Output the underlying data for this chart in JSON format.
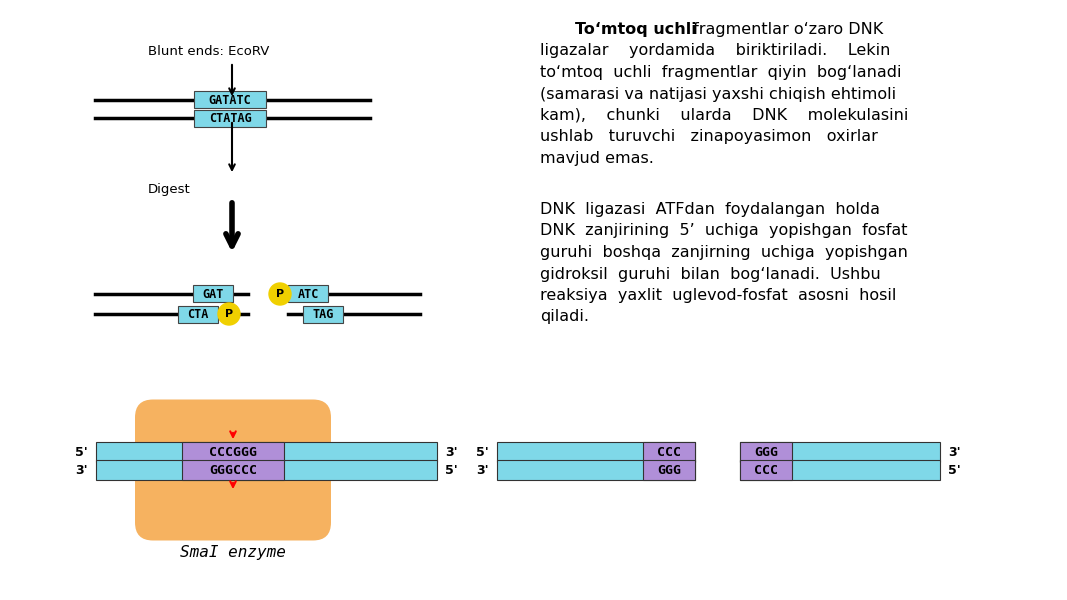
{
  "bg_color": "#ffffff",
  "para1_bold": "To‘mtoq uchli",
  "para1_lines": [
    " fragmentlar o‘zaro DNK",
    "ligazalar    yordamida    biriktiriladi.    Lekin",
    "to‘mtoq  uchli  fragmentlar  qiyin  bog‘lanadi",
    "(samarasi va natijasi yaxshi chiqish ehtimoli",
    "kam),    chunki    ularda    DNK    molekulasini",
    "ushlab   turuvchi   zinapoyasimon   oxirlar",
    "mavjud emas."
  ],
  "para2_lines": [
    "DNK  ligazasi  ATFdan  foydalangan  holda",
    "DNK  zanjirining  5’  uchiga  yopishgan  fosfat",
    "guruhi  boshqa  zanjirning  uchiga  yopishgan",
    "gidroksil  guruhi  bilan  bog‘lanadi.  Ushbu",
    "reaksiya  yaxlit  uglevod-fosfat  asosni  hosil",
    "qiladi."
  ],
  "blunt_label": "Blunt ends: EcoRV",
  "digest_label": "Digest",
  "top_seq1": "GATATC",
  "top_seq2": "CTATAG",
  "left_seq1": "GAT",
  "left_seq2": "CTA",
  "right_seq1": "ATC",
  "right_seq2": "TAG",
  "cyan_color": "#7fd8e8",
  "purple_color": "#b08fd8",
  "orange_color": "#f5a84a",
  "yellow_color": "#f0d000",
  "smai_label": "SmaI enzyme",
  "bottom_seq_top": "CCCGGG",
  "bottom_seq_bot": "GGGCCC",
  "frag_left_ccc": "CCC",
  "frag_left_ggg": "GGG",
  "frag_right_ggg": "GGG",
  "frag_right_ccc": "CCC"
}
